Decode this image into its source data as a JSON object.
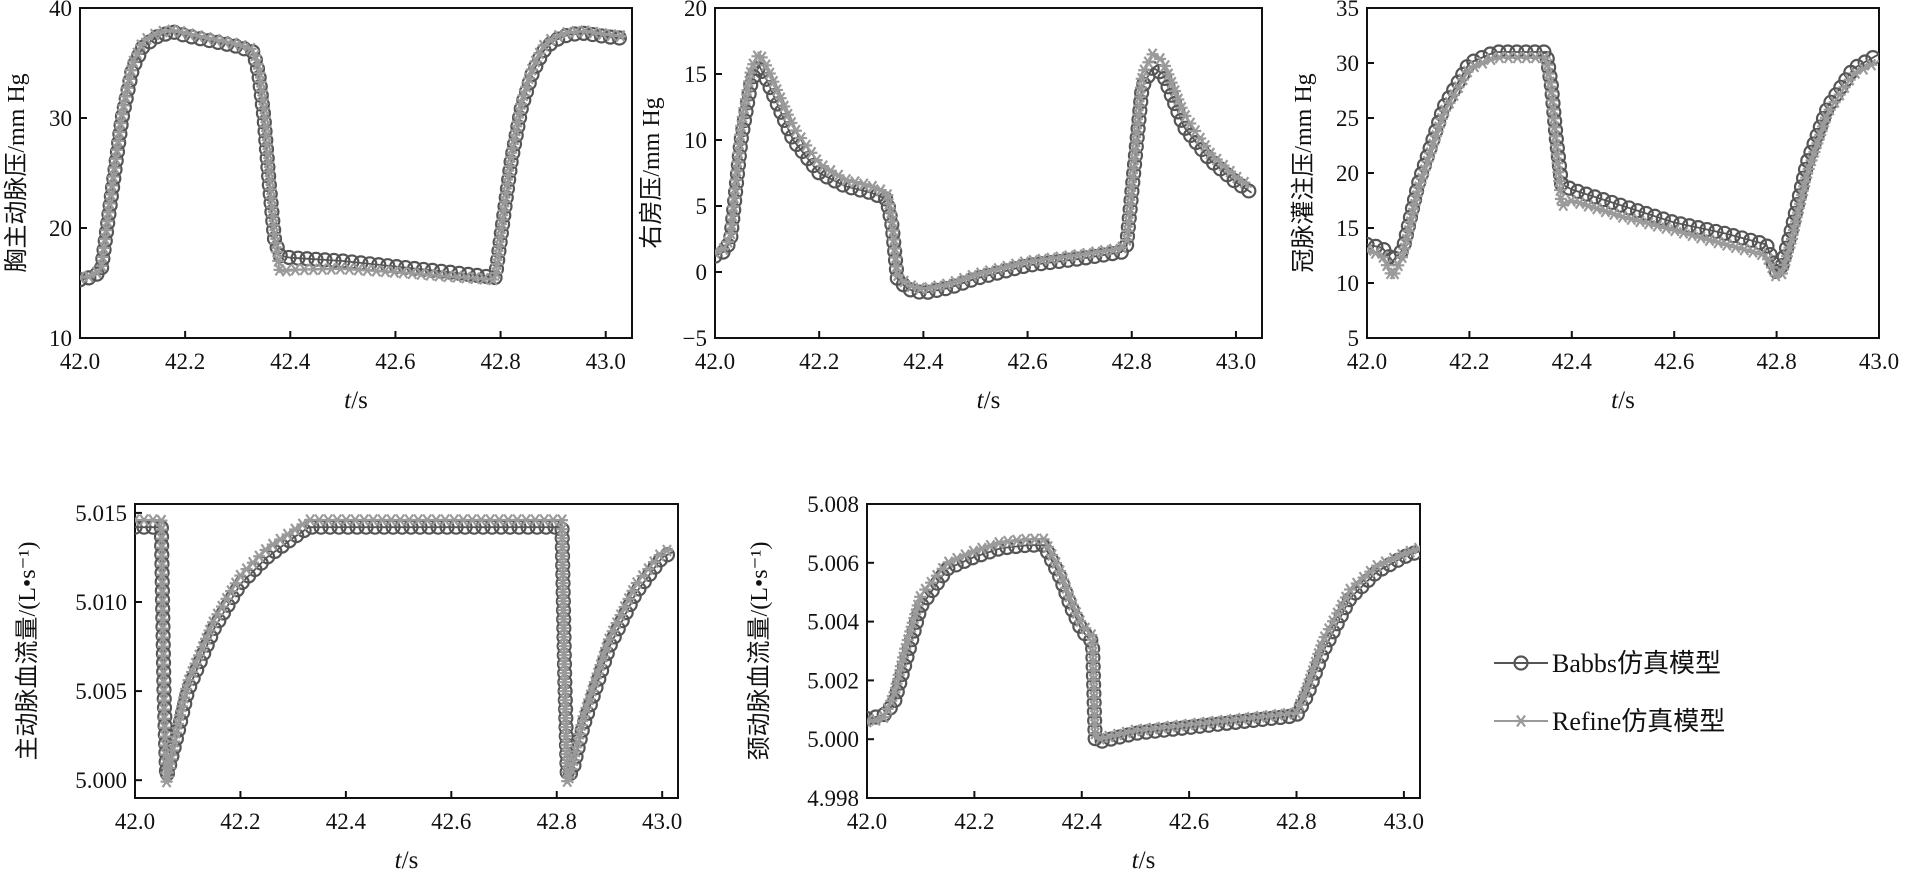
{
  "legend": {
    "items": [
      {
        "label": "Babbs仿真模型",
        "color": "#555555",
        "marker": "circle"
      },
      {
        "label": "Refine仿真模型",
        "color": "#9a9a9a",
        "marker": "asterisk"
      }
    ]
  },
  "chart_data": [
    {
      "id": "thoracic-aorta",
      "type": "line",
      "ylabel": "胸主动脉压/mm Hg",
      "xlabel_italic": "t",
      "xlabel_unit": "/s",
      "xlim": [
        42.0,
        43.05
      ],
      "ylim": [
        10,
        40
      ],
      "xticks": [
        42.0,
        42.2,
        42.4,
        42.6,
        42.8,
        43.0
      ],
      "xticklabels": [
        "42.0",
        "42.2",
        "42.4",
        "42.6",
        "42.8",
        "43.0"
      ],
      "yticks": [
        10,
        20,
        30,
        40
      ],
      "yticklabels": [
        "10",
        "20",
        "30",
        "40"
      ],
      "series": [
        {
          "legend": 0,
          "x": [
            42.0,
            42.02,
            42.04,
            42.06,
            42.08,
            42.1,
            42.12,
            42.15,
            42.18,
            42.2,
            42.25,
            42.3,
            42.33,
            42.34,
            42.35,
            42.36,
            42.37,
            42.38,
            42.4,
            42.5,
            42.6,
            42.7,
            42.79,
            42.8,
            42.82,
            42.84,
            42.86,
            42.88,
            42.9,
            42.93,
            42.96,
            43.0,
            43.04
          ],
          "y": [
            15.3,
            15.5,
            16.0,
            23,
            30,
            34.5,
            36.5,
            37.5,
            37.8,
            37.5,
            37.0,
            36.5,
            36.0,
            34,
            30,
            24,
            19,
            17.5,
            17.3,
            17.0,
            16.5,
            16.0,
            15.5,
            19,
            26,
            31,
            34,
            36,
            37,
            37.6,
            37.7,
            37.4,
            37.2
          ]
        },
        {
          "legend": 1,
          "x": [
            42.0,
            42.02,
            42.04,
            42.06,
            42.08,
            42.1,
            42.12,
            42.15,
            42.18,
            42.2,
            42.25,
            42.3,
            42.33,
            42.34,
            42.35,
            42.36,
            42.37,
            42.38,
            42.4,
            42.5,
            42.6,
            42.7,
            42.79,
            42.8,
            42.82,
            42.84,
            42.86,
            42.88,
            42.9,
            42.93,
            42.96,
            43.0,
            43.04
          ],
          "y": [
            15.5,
            15.6,
            16.2,
            23.5,
            30.5,
            35,
            37,
            37.8,
            38,
            37.7,
            37.2,
            36.7,
            36.2,
            34.5,
            31,
            25,
            19.5,
            16,
            16.2,
            16.3,
            16.0,
            15.6,
            15.3,
            19.5,
            26.5,
            31.5,
            34.5,
            36.5,
            37.3,
            37.8,
            37.9,
            37.6,
            37.4
          ]
        }
      ]
    },
    {
      "id": "right-atrium",
      "type": "line",
      "ylabel": "右房压/mm Hg",
      "xlabel_italic": "t",
      "xlabel_unit": "/s",
      "xlim": [
        42.0,
        43.05
      ],
      "ylim": [
        -5,
        20
      ],
      "xticks": [
        42.0,
        42.2,
        42.4,
        42.6,
        42.8,
        43.0
      ],
      "xticklabels": [
        "42.0",
        "42.2",
        "42.4",
        "42.6",
        "42.8",
        "43.0"
      ],
      "yticks": [
        -5,
        0,
        5,
        10,
        15,
        20
      ],
      "yticklabels": [
        "−5",
        "0",
        "5",
        "10",
        "15",
        "20"
      ],
      "series": [
        {
          "legend": 0,
          "x": [
            42.0,
            42.02,
            42.03,
            42.05,
            42.07,
            42.085,
            42.1,
            42.15,
            42.2,
            42.25,
            42.3,
            42.33,
            42.34,
            42.35,
            42.37,
            42.4,
            42.45,
            42.5,
            42.6,
            42.7,
            42.78,
            42.79,
            42.8,
            42.82,
            42.84,
            42.86,
            42.9,
            42.95,
            43.0,
            43.03
          ],
          "y": [
            1.2,
            1.6,
            2.5,
            10,
            14.5,
            15.6,
            14.5,
            10,
            7.5,
            6.5,
            6.0,
            5.5,
            3.5,
            -0.5,
            -1.3,
            -1.6,
            -1.2,
            -0.5,
            0.5,
            1.0,
            1.5,
            2.0,
            6,
            14,
            15.5,
            15,
            11,
            8.5,
            6.8,
            6.0
          ]
        },
        {
          "legend": 1,
          "x": [
            42.0,
            42.02,
            42.03,
            42.05,
            42.07,
            42.085,
            42.1,
            42.15,
            42.2,
            42.25,
            42.3,
            42.33,
            42.34,
            42.35,
            42.37,
            42.4,
            42.45,
            42.5,
            42.6,
            42.7,
            42.78,
            42.79,
            42.8,
            42.82,
            42.84,
            42.86,
            42.9,
            42.95,
            43.0,
            43.03
          ],
          "y": [
            1.5,
            1.8,
            2.8,
            11,
            15.5,
            16.6,
            15.5,
            11,
            8.2,
            7.0,
            6.5,
            6.0,
            4.0,
            -0.2,
            -1.0,
            -1.3,
            -0.9,
            -0.2,
            0.8,
            1.3,
            1.8,
            2.3,
            6.5,
            15,
            16.5,
            16,
            12,
            9.0,
            7.2,
            6.4
          ]
        }
      ]
    },
    {
      "id": "coronary-perfusion",
      "type": "line",
      "ylabel": "冠脉灌注压/mm Hg",
      "xlabel_italic": "t",
      "xlabel_unit": "/s",
      "xlim": [
        42.0,
        43.0
      ],
      "ylim": [
        5,
        35
      ],
      "xticks": [
        42.0,
        42.2,
        42.4,
        42.6,
        42.8,
        43.0
      ],
      "xticklabels": [
        "42.0",
        "42.2",
        "42.4",
        "42.6",
        "42.8",
        "43.0"
      ],
      "yticks": [
        5,
        10,
        15,
        20,
        25,
        30,
        35
      ],
      "yticklabels": [
        "5",
        "10",
        "15",
        "20",
        "25",
        "30",
        "35"
      ],
      "series": [
        {
          "legend": 0,
          "x": [
            42.0,
            42.03,
            42.05,
            42.07,
            42.1,
            42.15,
            42.2,
            42.25,
            42.3,
            42.35,
            42.36,
            42.37,
            42.38,
            42.4,
            42.5,
            42.6,
            42.7,
            42.78,
            42.8,
            42.81,
            42.83,
            42.86,
            42.9,
            42.95,
            43.0
          ],
          "y": [
            13.5,
            13.2,
            12,
            13,
            19,
            26,
            30,
            31,
            31,
            31,
            28,
            23,
            19,
            18.5,
            17,
            15.5,
            14.5,
            13.5,
            11,
            11.5,
            15,
            21,
            26,
            29.5,
            30.8
          ]
        },
        {
          "legend": 1,
          "x": [
            42.0,
            42.03,
            42.05,
            42.07,
            42.1,
            42.15,
            42.2,
            42.25,
            42.3,
            42.35,
            42.36,
            42.37,
            42.38,
            42.4,
            42.5,
            42.6,
            42.7,
            42.78,
            42.8,
            42.81,
            42.83,
            42.86,
            42.9,
            42.95,
            43.0
          ],
          "y": [
            13,
            12.5,
            10.5,
            12.5,
            18.5,
            25.5,
            29.5,
            30.5,
            30.5,
            30.5,
            27.5,
            22,
            17,
            17.5,
            16,
            14.8,
            13.5,
            12.5,
            10.5,
            10.8,
            14,
            20,
            25.5,
            29,
            30.2
          ]
        }
      ]
    },
    {
      "id": "aortic-flow",
      "type": "line",
      "ylabel": "主动脉血流量/(L•s⁻¹)",
      "xlabel_italic": "t",
      "xlabel_unit": "/s",
      "xlim": [
        42.0,
        43.03
      ],
      "ylim": [
        4.999,
        5.0155
      ],
      "xticks": [
        42.0,
        42.2,
        42.4,
        42.6,
        42.8,
        43.0
      ],
      "xticklabels": [
        "42.0",
        "42.2",
        "42.4",
        "42.6",
        "42.8",
        "43.0"
      ],
      "yticks": [
        5.0,
        5.005,
        5.01,
        5.015
      ],
      "yticklabels": [
        "5.000",
        "5.005",
        "5.010",
        "5.015"
      ],
      "series": [
        {
          "legend": 0,
          "x": [
            42.0,
            42.02,
            42.04,
            42.05,
            42.055,
            42.06,
            42.08,
            42.1,
            42.15,
            42.2,
            42.25,
            42.3,
            42.33,
            42.4,
            42.5,
            42.6,
            42.7,
            42.8,
            42.81,
            42.815,
            42.82,
            42.83,
            42.85,
            42.9,
            42.95,
            43.0,
            43.02
          ],
          "y": [
            5.0142,
            5.0142,
            5.0142,
            5.0142,
            5.005,
            5.0002,
            5.0025,
            5.005,
            5.0085,
            5.011,
            5.0125,
            5.0136,
            5.0142,
            5.0142,
            5.0142,
            5.0142,
            5.0142,
            5.0142,
            5.0142,
            5.006,
            5.0002,
            5.0005,
            5.003,
            5.0075,
            5.0105,
            5.0125,
            5.0128
          ]
        },
        {
          "legend": 1,
          "x": [
            42.0,
            42.02,
            42.04,
            42.05,
            42.055,
            42.06,
            42.08,
            42.1,
            42.15,
            42.2,
            42.25,
            42.3,
            42.33,
            42.4,
            42.5,
            42.6,
            42.7,
            42.8,
            42.81,
            42.815,
            42.82,
            42.83,
            42.85,
            42.9,
            42.95,
            43.0,
            43.02
          ],
          "y": [
            5.0146,
            5.0146,
            5.0146,
            5.0146,
            5.004,
            4.9998,
            5.003,
            5.0055,
            5.009,
            5.0115,
            5.013,
            5.014,
            5.0146,
            5.0146,
            5.0146,
            5.0146,
            5.0146,
            5.0146,
            5.0146,
            5.005,
            4.9998,
            5.0008,
            5.0035,
            5.008,
            5.011,
            5.0128,
            5.013
          ]
        }
      ]
    },
    {
      "id": "carotid-flow",
      "type": "line",
      "ylabel": "颈动脉血流量/(L•s⁻¹)",
      "xlabel_italic": "t",
      "xlabel_unit": "/s",
      "xlim": [
        42.0,
        43.03
      ],
      "ylim": [
        4.998,
        5.008
      ],
      "xticks": [
        42.0,
        42.2,
        42.4,
        42.6,
        42.8,
        43.0
      ],
      "xticklabels": [
        "42.0",
        "42.2",
        "42.4",
        "42.6",
        "42.8",
        "43.0"
      ],
      "yticks": [
        4.998,
        5.0,
        5.002,
        5.004,
        5.006,
        5.008
      ],
      "yticklabels": [
        "4.998",
        "5.000",
        "5.002",
        "5.004",
        "5.006",
        "5.008"
      ],
      "series": [
        {
          "legend": 0,
          "x": [
            42.0,
            42.03,
            42.05,
            42.07,
            42.1,
            42.15,
            42.2,
            42.25,
            42.3,
            42.33,
            42.36,
            42.38,
            42.4,
            42.42,
            42.425,
            42.43,
            42.5,
            42.6,
            42.7,
            42.8,
            42.82,
            42.85,
            42.9,
            42.95,
            43.0,
            43.03
          ],
          "y": [
            5.0007,
            5.0008,
            5.0012,
            5.0025,
            5.0045,
            5.0058,
            5.0062,
            5.0065,
            5.0066,
            5.0066,
            5.0055,
            5.0045,
            5.0037,
            5.0033,
            5.0,
            4.9999,
            5.0002,
            5.0004,
            5.0006,
            5.0008,
            5.0015,
            5.003,
            5.0048,
            5.0057,
            5.0062,
            5.0064
          ]
        },
        {
          "legend": 1,
          "x": [
            42.0,
            42.03,
            42.05,
            42.07,
            42.1,
            42.15,
            42.2,
            42.25,
            42.3,
            42.33,
            42.36,
            42.38,
            42.4,
            42.42,
            42.425,
            42.43,
            42.5,
            42.6,
            42.7,
            42.8,
            42.82,
            42.85,
            42.9,
            42.95,
            43.0,
            43.03
          ],
          "y": [
            5.0006,
            5.0007,
            5.0015,
            5.003,
            5.0049,
            5.006,
            5.0064,
            5.0067,
            5.0068,
            5.0068,
            5.0057,
            5.0047,
            5.0039,
            5.0035,
            5.0001,
            5.0,
            5.0003,
            5.0005,
            5.0007,
            5.0009,
            5.0018,
            5.0034,
            5.0051,
            5.0059,
            5.0063,
            5.0065
          ]
        }
      ]
    }
  ]
}
